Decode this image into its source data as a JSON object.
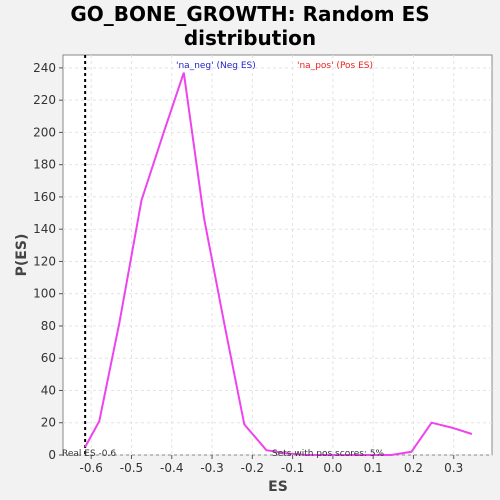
{
  "title_line1": "GO_BONE_GROWTH: Random ES",
  "title_line2": "distribution",
  "chart_data": {
    "type": "line",
    "xlabel": "ES",
    "ylabel": "P(ES)",
    "xlim": [
      -0.67,
      0.395
    ],
    "ylim": [
      0,
      248
    ],
    "x_ticks": [
      -0.6,
      -0.5,
      -0.4,
      -0.3,
      -0.2,
      -0.1,
      0.0,
      0.1,
      0.2,
      0.3
    ],
    "x_tick_labels": [
      "-0.6",
      "-0.5",
      "-0.4",
      "-0.3",
      "-0.2",
      "-0.1",
      "0.0",
      "0.1",
      "0.2",
      "0.3"
    ],
    "y_ticks": [
      0,
      20,
      40,
      60,
      80,
      100,
      120,
      140,
      160,
      180,
      200,
      220,
      240
    ],
    "grid": true,
    "series": [
      {
        "color": "#ee44ee",
        "x": [
          -0.615,
          -0.58,
          -0.53,
          -0.475,
          -0.42,
          -0.37,
          -0.32,
          -0.27,
          -0.22,
          -0.165,
          -0.115,
          -0.065,
          -0.015,
          0.035,
          0.085,
          0.145,
          0.195,
          0.245,
          0.295,
          0.345
        ],
        "y": [
          5,
          21,
          82,
          158,
          200,
          237,
          147,
          82,
          19,
          3,
          1,
          0,
          0,
          0,
          0,
          0,
          2,
          20,
          17,
          13
        ]
      }
    ],
    "real_es": -0.615,
    "real_es_label": "Real ES -0.6",
    "legend_neg": "'na_neg' (Neg ES)",
    "legend_pos": "'na_pos' (Pos ES)",
    "legend_neg_color": "#2222cc",
    "legend_pos_color": "#ee2222",
    "annotation": "Sets with pos scores: 5%"
  }
}
